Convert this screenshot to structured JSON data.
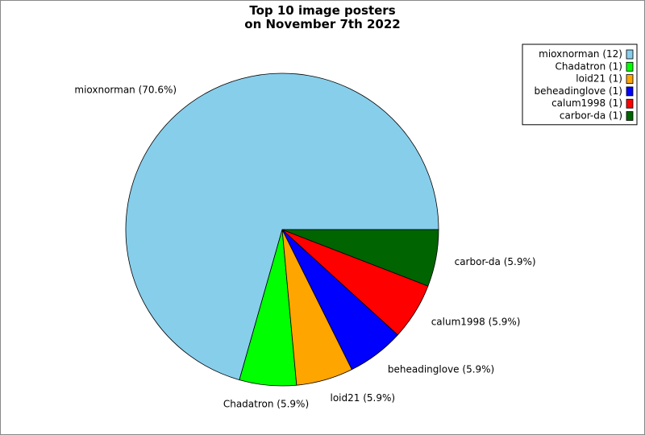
{
  "chart_data": {
    "type": "pie",
    "title_lines": [
      "Top 10 image posters",
      "on November 7th 2022"
    ],
    "slices": [
      {
        "name": "mioxnorman",
        "count": 12,
        "percent": 70.6,
        "color": "#87ceeb",
        "label": "mioxnorman (70.6%)",
        "legend": "mioxnorman (12)"
      },
      {
        "name": "Chadatron",
        "count": 1,
        "percent": 5.9,
        "color": "#00ff00",
        "label": "Chadatron (5.9%)",
        "legend": "Chadatron (1)"
      },
      {
        "name": "loid21",
        "count": 1,
        "percent": 5.9,
        "color": "#ffa500",
        "label": "loid21 (5.9%)",
        "legend": "loid21 (1)"
      },
      {
        "name": "beheadinglove",
        "count": 1,
        "percent": 5.9,
        "color": "#0000ff",
        "label": "beheadinglove (5.9%)",
        "legend": "beheadinglove (1)"
      },
      {
        "name": "calum1998",
        "count": 1,
        "percent": 5.9,
        "color": "#ff0000",
        "label": "calum1998 (5.9%)",
        "legend": "calum1998 (1)"
      },
      {
        "name": "carbor-da",
        "count": 1,
        "percent": 5.9,
        "color": "#006400",
        "label": "carbor-da (5.9%)",
        "legend": "carbor-da (1)"
      }
    ],
    "legend_position": "top-right"
  }
}
